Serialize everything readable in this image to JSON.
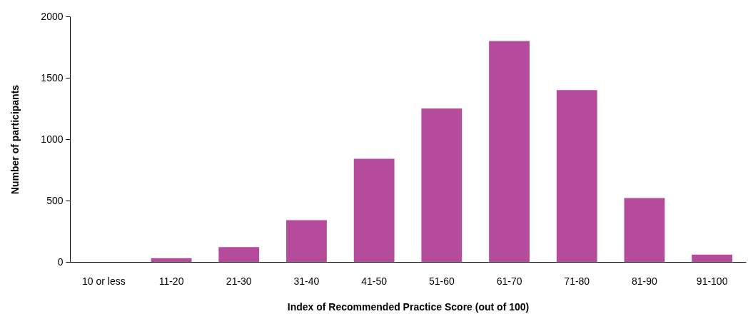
{
  "chart_data": {
    "type": "bar",
    "xlabel": "Index of Recommended Practice Score (out of 100)",
    "ylabel": "Number of participants",
    "categories": [
      "10 or less",
      "11-20",
      "21-30",
      "31-40",
      "41-50",
      "51-60",
      "61-70",
      "71-80",
      "81-90",
      "91-100"
    ],
    "values": [
      0,
      30,
      120,
      340,
      840,
      1250,
      1800,
      1400,
      520,
      60
    ],
    "color": "#b44b9b",
    "ylim": [
      0,
      2000
    ],
    "yticks": [
      0,
      500,
      1000,
      1500,
      2000
    ],
    "grid": false
  }
}
